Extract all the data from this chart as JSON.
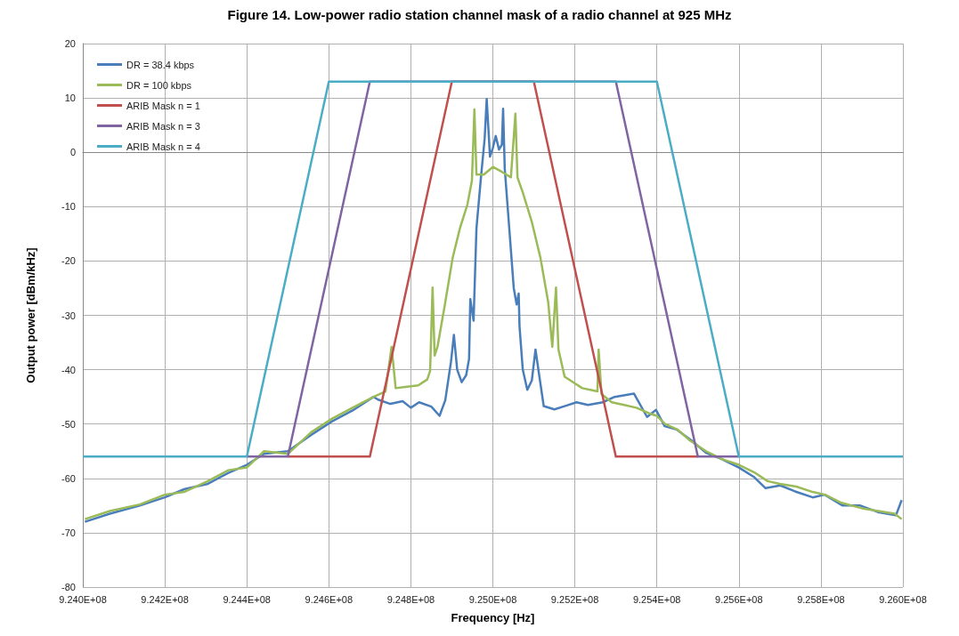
{
  "chart_data": {
    "type": "line",
    "title": "Figure 14. Low-power radio station channel mask of a radio channel at 925 MHz",
    "xlabel": "Frequency [Hz]",
    "ylabel": "Output power [dBm/kHz]",
    "xlim": [
      924000000,
      926000000
    ],
    "xticks": [
      {
        "value": 924000000,
        "label": "9.240E+08"
      },
      {
        "value": 924200000,
        "label": "9.242E+08"
      },
      {
        "value": 924400000,
        "label": "9.244E+08"
      },
      {
        "value": 924600000,
        "label": "9.246E+08"
      },
      {
        "value": 924800000,
        "label": "9.248E+08"
      },
      {
        "value": 925000000,
        "label": "9.250E+08"
      },
      {
        "value": 925200000,
        "label": "9.252E+08"
      },
      {
        "value": 925400000,
        "label": "9.254E+08"
      },
      {
        "value": 925600000,
        "label": "9.256E+08"
      },
      {
        "value": 925800000,
        "label": "9.258E+08"
      },
      {
        "value": 926000000,
        "label": "9.260E+08"
      }
    ],
    "ylim": [
      -80,
      20
    ],
    "yticks": [
      -80,
      -70,
      -60,
      -50,
      -40,
      -30,
      -20,
      -10,
      0,
      10,
      20
    ],
    "grid": true,
    "legend": "top left",
    "marker": "none",
    "series": [
      {
        "name": "DR = 38.4 kbps",
        "color": "#4a7ebb",
        "x": [
          924005000,
          924066000,
          924139000,
          924200000,
          924247000,
          924305000,
          924355000,
          924400000,
          924442000,
          924500000,
          924557000,
          924608000,
          924658000,
          924709000,
          924720000,
          924750000,
          924780000,
          924800000,
          924820000,
          924850000,
          924870000,
          924884000,
          924898000,
          924905000,
          924913000,
          924924000,
          924935000,
          924942000,
          924945000,
          924953000,
          924960000,
          924971000,
          924980000,
          924985000,
          924993000,
          925000000,
          925007000,
          925015000,
          925022000,
          925025000,
          925029000,
          925040000,
          925051000,
          925058000,
          925063000,
          925065000,
          925073000,
          925084000,
          925095000,
          925104000,
          925113000,
          925124000,
          925150000,
          925180000,
          925204000,
          925232000,
          925268000,
          925297000,
          925344000,
          925376000,
          925398000,
          925419000,
          925448000,
          925484000,
          925520000,
          925557000,
          925600000,
          925636000,
          925665000,
          925701000,
          925737000,
          925780000,
          925809000,
          925853000,
          925896000,
          925939000,
          925983000,
          925997000
        ],
        "values": [
          -68,
          -66.5,
          -65,
          -63.5,
          -62,
          -61,
          -59,
          -57.5,
          -55.5,
          -55,
          -52,
          -49.5,
          -47.5,
          -45,
          -45.5,
          -46.3,
          -45.8,
          -47,
          -46,
          -46.8,
          -48.5,
          -45.6,
          -38.5,
          -33.6,
          -40,
          -42.3,
          -41,
          -38,
          -27,
          -31,
          -14,
          -4.6,
          2.5,
          9.8,
          -0.8,
          0.8,
          3,
          0.5,
          1.4,
          8,
          -3,
          -14,
          -25,
          -28,
          -26,
          -32,
          -40,
          -43.7,
          -42,
          -36.3,
          -41,
          -46.7,
          -47.3,
          -46.6,
          -46,
          -46.5,
          -46,
          -45,
          -44.4,
          -48.7,
          -47.4,
          -50.4,
          -51,
          -53,
          -55.3,
          -56.4,
          -58,
          -59.7,
          -61.8,
          -61.3,
          -62.4,
          -63.5,
          -63,
          -65,
          -65,
          -66.2,
          -66.8,
          -64
        ]
      },
      {
        "name": "DR = 100 kbps",
        "color": "#9bbb59",
        "x": [
          924005000,
          924066000,
          924139000,
          924200000,
          924247000,
          924305000,
          924355000,
          924400000,
          924442000,
          924500000,
          924557000,
          924608000,
          924658000,
          924709000,
          924738000,
          924753000,
          924763000,
          924782000,
          924818000,
          924840000,
          924847000,
          924853000,
          924858000,
          924865000,
          924884000,
          924902000,
          924920000,
          924938000,
          924949000,
          924955000,
          924960000,
          924978000,
          925000000,
          925022000,
          925044000,
          925055000,
          925060000,
          925073000,
          925095000,
          925116000,
          925135000,
          925145000,
          925154000,
          925160000,
          925175000,
          925218000,
          925255000,
          925258000,
          925265000,
          925290000,
          925320000,
          925350000,
          925380000,
          925400000,
          925420000,
          925450000,
          925480000,
          925520000,
          925560000,
          925600000,
          925640000,
          925670000,
          925700000,
          925740000,
          925780000,
          925810000,
          925850000,
          925900000,
          925940000,
          925980000,
          925997000
        ],
        "values": [
          -67.5,
          -66,
          -64.8,
          -63,
          -62.5,
          -60.5,
          -58.5,
          -58,
          -55,
          -55.5,
          -51.5,
          -49,
          -47,
          -45,
          -44,
          -35.8,
          -43.4,
          -43.2,
          -42.9,
          -41.8,
          -40.2,
          -24.9,
          -37.4,
          -35.8,
          -27.6,
          -19.4,
          -13.9,
          -9.6,
          -5.2,
          7.9,
          -4.1,
          -4.1,
          -2.7,
          -3.6,
          -4.6,
          7.1,
          -4.6,
          -7.4,
          -12.8,
          -19.4,
          -27.6,
          -35.8,
          -24.9,
          -36.3,
          -41.3,
          -43.4,
          -44,
          -36.3,
          -44.5,
          -46,
          -46.5,
          -47,
          -48,
          -48.5,
          -50,
          -51,
          -53,
          -55,
          -56.5,
          -57.5,
          -59,
          -60.5,
          -61,
          -61.5,
          -62.5,
          -63,
          -64.5,
          -65.5,
          -66,
          -66.5,
          -67.5
        ]
      },
      {
        "name": "ARIB Mask n = 1",
        "color": "#c0504d",
        "x": [
          924500000,
          924700000,
          924900000,
          925100000,
          925300000,
          925500000
        ],
        "values": [
          -56,
          -56,
          13,
          13,
          -56,
          -56
        ]
      },
      {
        "name": "ARIB Mask n = 3",
        "color": "#8064a2",
        "x": [
          924400000,
          924500000,
          924700000,
          925300000,
          925500000,
          925600000
        ],
        "values": [
          -56,
          -56,
          13,
          13,
          -56,
          -56
        ]
      },
      {
        "name": "ARIB Mask n = 4",
        "color": "#4bacc6",
        "x": [
          924000000,
          924400000,
          924600000,
          925400000,
          925600000,
          926000000
        ],
        "values": [
          -56,
          -56,
          13,
          13,
          -56,
          -56
        ]
      }
    ]
  }
}
